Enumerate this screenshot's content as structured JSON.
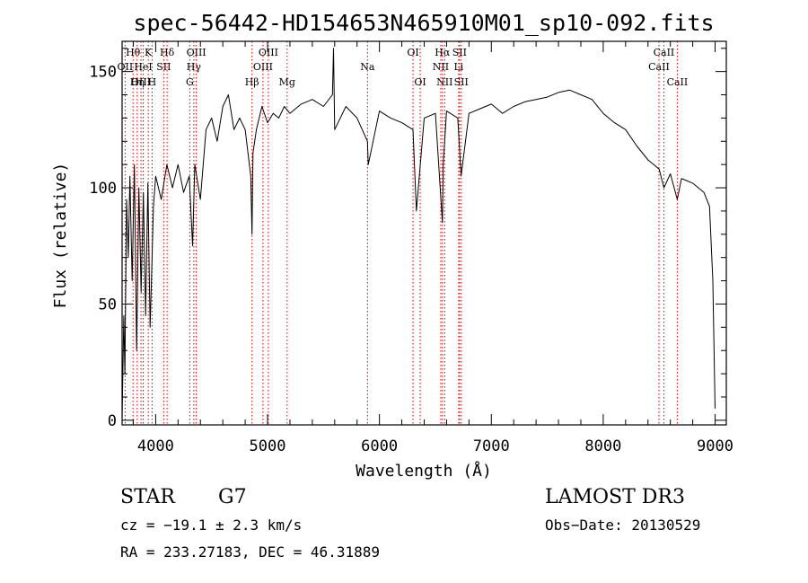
{
  "chart_data": {
    "type": "line",
    "title": "spec-56442-HD154653N465910M01_sp10-092.fits",
    "xlabel": "Wavelength (Å)",
    "ylabel": "Flux (relative)",
    "xlim": [
      3700,
      9100
    ],
    "ylim": [
      -2,
      163
    ],
    "x_ticks": [
      4000,
      5000,
      6000,
      7000,
      8000,
      9000
    ],
    "x_tick_labels": [
      "4000",
      "5000",
      "6000",
      "7000",
      "8000",
      "9000"
    ],
    "y_ticks": [
      0,
      50,
      100,
      150
    ],
    "y_tick_labels": [
      "0",
      "50",
      "100",
      "150"
    ],
    "series": [
      {
        "name": "flux",
        "x": [
          3700,
          3715,
          3725,
          3740,
          3755,
          3770,
          3790,
          3810,
          3830,
          3850,
          3870,
          3890,
          3910,
          3930,
          3950,
          3968,
          3980,
          4000,
          4050,
          4100,
          4150,
          4200,
          4250,
          4300,
          4330,
          4350,
          4400,
          4450,
          4500,
          4550,
          4600,
          4650,
          4700,
          4750,
          4800,
          4850,
          4861,
          4870,
          4900,
          4950,
          5000,
          5050,
          5100,
          5150,
          5200,
          5300,
          5400,
          5500,
          5580,
          5590,
          5600,
          5700,
          5800,
          5893,
          5900,
          6000,
          6100,
          6200,
          6300,
          6330,
          6400,
          6500,
          6563,
          6570,
          6600,
          6700,
          6730,
          6800,
          6900,
          7000,
          7100,
          7200,
          7300,
          7400,
          7500,
          7600,
          7700,
          7800,
          7900,
          8000,
          8100,
          8200,
          8300,
          8400,
          8500,
          8542,
          8600,
          8662,
          8700,
          8800,
          8900,
          8950,
          8980,
          9000
        ],
        "values": [
          0,
          45,
          20,
          95,
          70,
          105,
          60,
          110,
          30,
          100,
          55,
          98,
          45,
          102,
          40,
          70,
          92,
          105,
          95,
          110,
          100,
          110,
          98,
          105,
          75,
          110,
          95,
          125,
          130,
          120,
          135,
          140,
          125,
          130,
          125,
          105,
          80,
          115,
          125,
          135,
          128,
          132,
          130,
          135,
          132,
          136,
          138,
          135,
          140,
          160,
          125,
          135,
          130,
          120,
          110,
          133,
          130,
          128,
          125,
          90,
          130,
          132,
          85,
          110,
          133,
          130,
          105,
          132,
          134,
          136,
          132,
          135,
          137,
          138,
          139,
          141,
          142,
          140,
          138,
          132,
          128,
          125,
          118,
          112,
          108,
          100,
          106,
          95,
          104,
          102,
          98,
          92,
          60,
          5
        ]
      }
    ],
    "spectral_lines": [
      {
        "label": "Hθ",
        "wavelength": 3798,
        "row": 1
      },
      {
        "label": "OII",
        "wavelength": 3727,
        "row": 2
      },
      {
        "label": "OIII",
        "wavelength": 3869,
        "row": 3
      },
      {
        "label": "K",
        "wavelength": 3934,
        "row": 1
      },
      {
        "label": "HeI",
        "wavelength": 3889,
        "row": 2
      },
      {
        "label": "Hη",
        "wavelength": 3835,
        "row": 3
      },
      {
        "label": "Hδ",
        "wavelength": 4102,
        "row": 1
      },
      {
        "label": "SII",
        "wavelength": 4072,
        "row": 2
      },
      {
        "label": "H",
        "wavelength": 3968,
        "row": 3
      },
      {
        "label": "OIII",
        "wavelength": 4363,
        "row": 1
      },
      {
        "label": "Hγ",
        "wavelength": 4341,
        "row": 2
      },
      {
        "label": "G",
        "wavelength": 4305,
        "row": 3
      },
      {
        "label": "OIII",
        "wavelength": 5007,
        "row": 1
      },
      {
        "label": "OIII",
        "wavelength": 4959,
        "row": 2
      },
      {
        "label": "Hβ",
        "wavelength": 4861,
        "row": 3
      },
      {
        "label": "Mg",
        "wavelength": 5175,
        "row": 3
      },
      {
        "label": "Na",
        "wavelength": 5893,
        "row": 2
      },
      {
        "label": "OI",
        "wavelength": 6300,
        "row": 1
      },
      {
        "label": "OI",
        "wavelength": 6364,
        "row": 3
      },
      {
        "label": "Hα",
        "wavelength": 6563,
        "row": 1
      },
      {
        "label": "SII",
        "wavelength": 6716,
        "row": 1
      },
      {
        "label": "NII",
        "wavelength": 6548,
        "row": 2
      },
      {
        "label": "Li",
        "wavelength": 6708,
        "row": 2
      },
      {
        "label": "NII",
        "wavelength": 6583,
        "row": 3
      },
      {
        "label": "SII",
        "wavelength": 6731,
        "row": 3
      },
      {
        "label": "CaII",
        "wavelength": 8542,
        "row": 1
      },
      {
        "label": "CaII",
        "wavelength": 8498,
        "row": 2
      },
      {
        "label": "CaII",
        "wavelength": 8662,
        "row": 3
      }
    ]
  },
  "info": {
    "object_class": "STAR",
    "subclass": "G7",
    "survey": "LAMOST DR3",
    "redshift": "cz = −19.1 ± 2.3 km/s",
    "obs_date": "Obs−Date: 20130529",
    "coords": "RA = 233.27183, DEC =  46.31889"
  },
  "colors": {
    "line_marker": "#cc0000",
    "spectrum": "#000000"
  }
}
